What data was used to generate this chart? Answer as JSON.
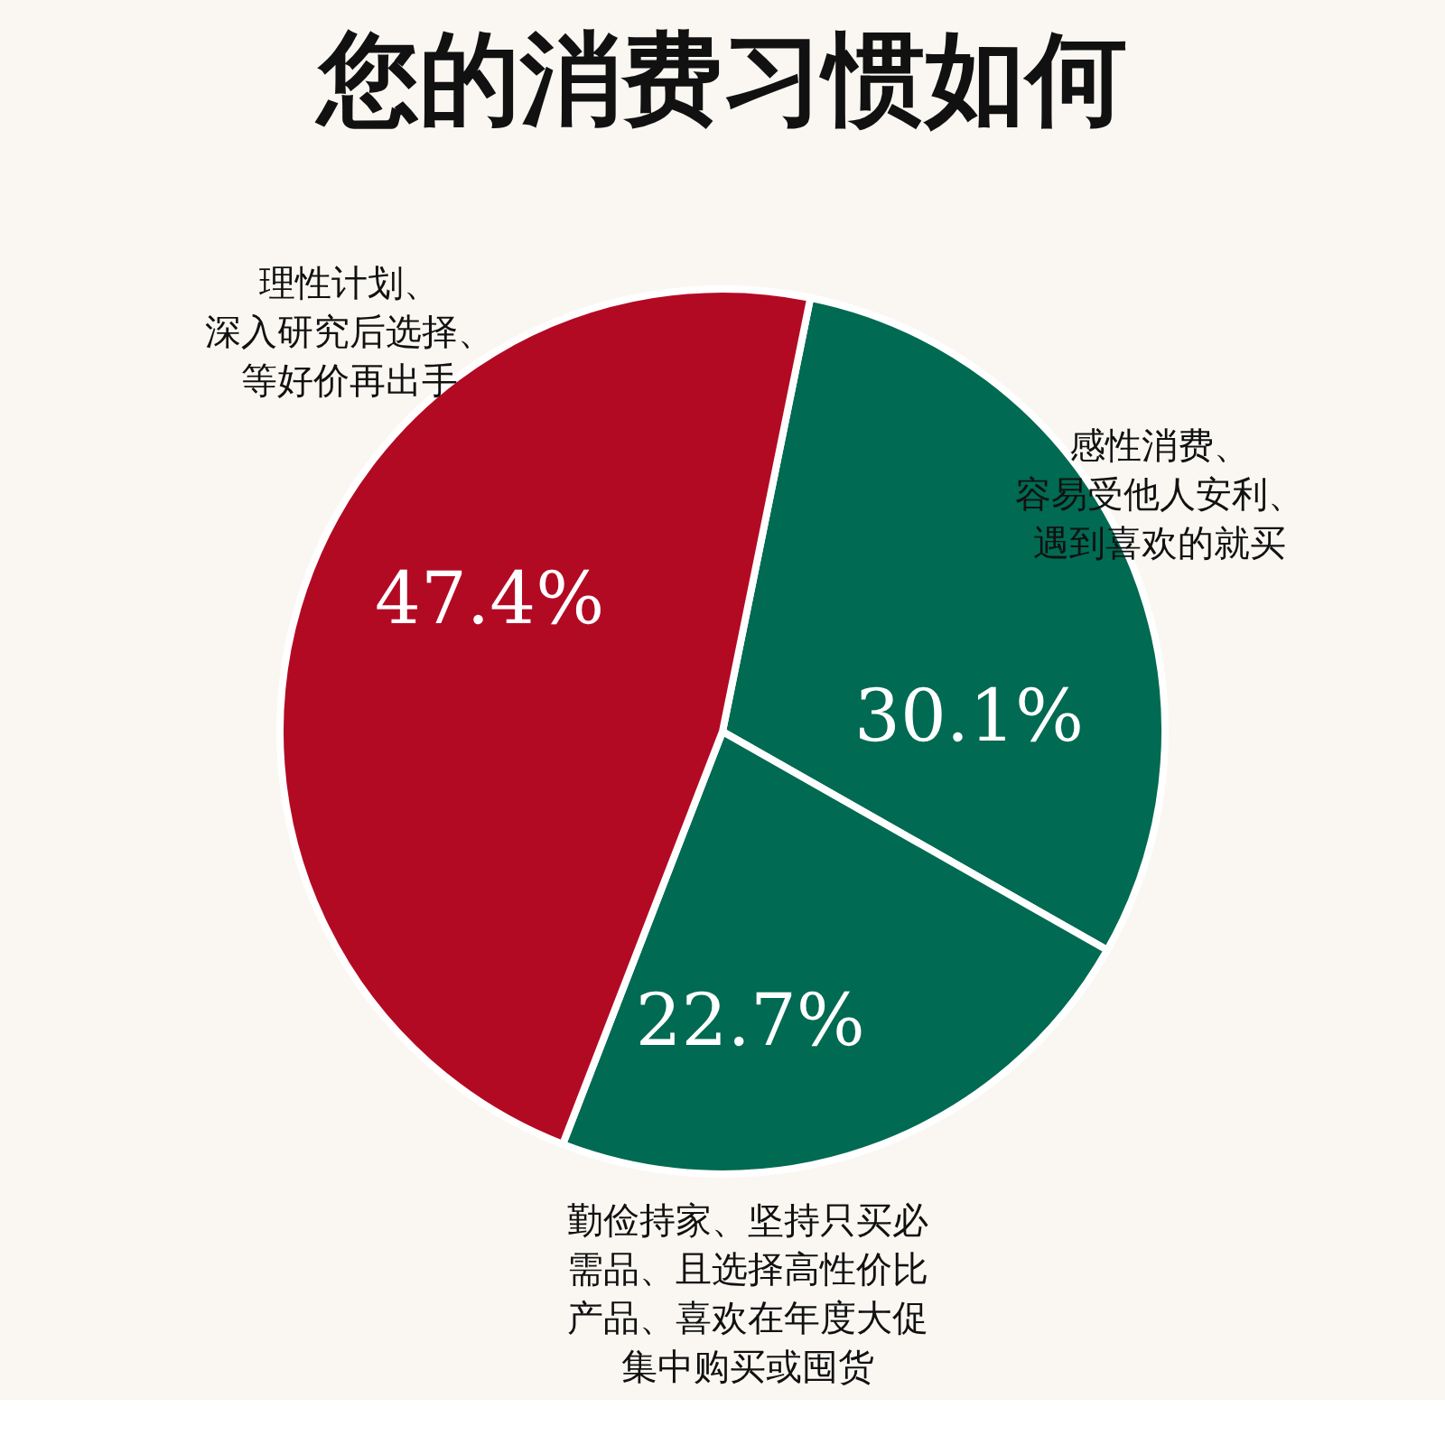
{
  "chart_data": {
    "type": "pie",
    "title": "您的消费习惯如何",
    "categories": [
      "感性消费、容易受他人安利、遇到喜欢的就买",
      "勤俭持家、坚持只买必需品、且选择高性价比产品、喜欢在年度大促集中购买或囤货",
      "理性计划、深入研究后选择、等好价再出手"
    ],
    "values": [
      30.1,
      22.7,
      47.4
    ],
    "value_labels": [
      "30.1%",
      "22.7%",
      "47.4%"
    ],
    "colors": [
      "#006a52",
      "#006a52",
      "#b30a24"
    ]
  }
}
